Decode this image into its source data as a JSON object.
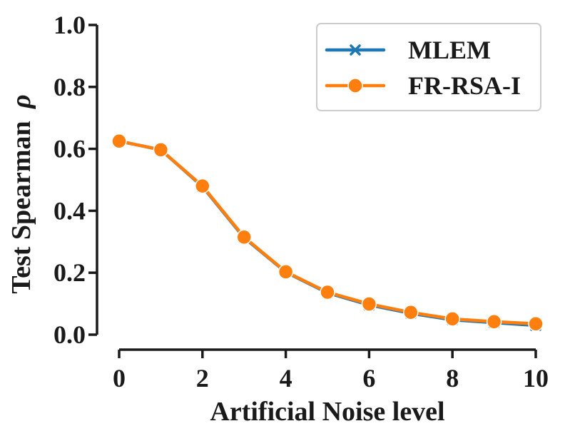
{
  "chart_data": {
    "type": "line",
    "xlabel": "Artificial Noise level",
    "ylabel": "Test Spearman",
    "ylabel_symbol": "ρ",
    "xlim": [
      0,
      10
    ],
    "ylim": [
      0,
      1
    ],
    "x_ticks": [
      0,
      2,
      4,
      6,
      8,
      10
    ],
    "x_tick_labels": [
      "0",
      "2",
      "4",
      "6",
      "8",
      "10"
    ],
    "y_ticks": [
      0,
      0.2,
      0.4,
      0.6,
      0.8,
      1.0
    ],
    "y_tick_labels": [
      "0.0",
      "0.2",
      "0.4",
      "0.6",
      "0.8",
      "1.0"
    ],
    "grid": false,
    "legend_position": "top-right",
    "x": [
      0,
      1,
      2,
      3,
      4,
      5,
      6,
      7,
      8,
      9,
      10
    ],
    "series": [
      {
        "name": "MLEM",
        "color": "#1f77b4",
        "marker": "x",
        "values": [
          0.625,
          0.597,
          0.478,
          0.313,
          0.202,
          0.135,
          0.096,
          0.069,
          0.048,
          0.039,
          0.03
        ]
      },
      {
        "name": "FR-RSA-I",
        "color": "#ff7f0e",
        "marker": "circle",
        "values": [
          0.625,
          0.597,
          0.48,
          0.315,
          0.203,
          0.137,
          0.099,
          0.072,
          0.051,
          0.042,
          0.035
        ]
      }
    ]
  }
}
